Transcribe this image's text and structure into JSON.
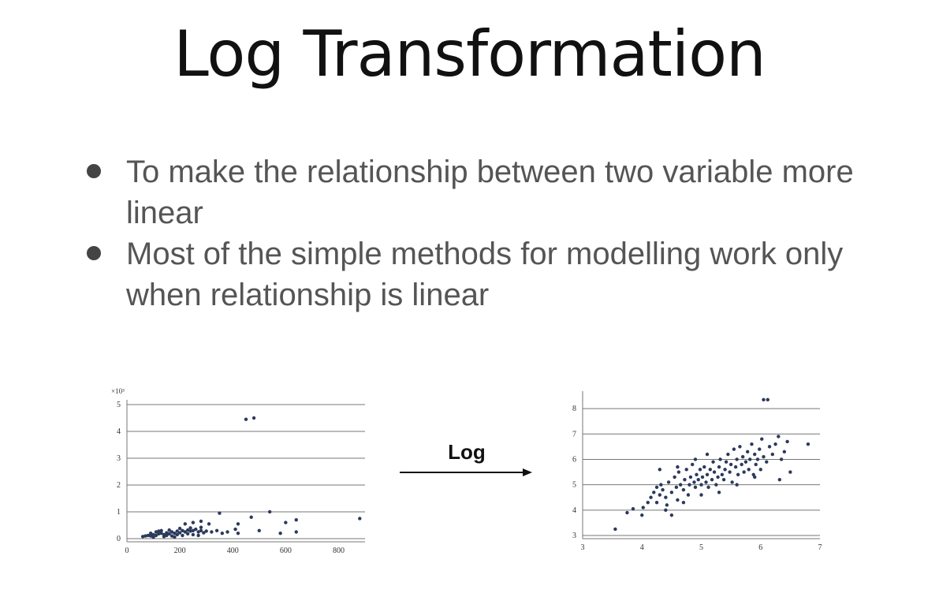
{
  "slide": {
    "title": "Log Transformation",
    "bullets": [
      "To make the relationship between two variable more linear",
      "Most of the simple methods for modelling work only when relationship is linear"
    ],
    "arrow_label": "Log"
  },
  "colors": {
    "point": "#2b3a5c",
    "grid": "#777777",
    "text": "#555555"
  },
  "chart_data": [
    {
      "type": "scatter",
      "title": "",
      "xlabel": "",
      "ylabel": "",
      "y_multiplier_label": "×10³",
      "xlim": [
        0,
        900
      ],
      "ylim": [
        0,
        5
      ],
      "x_ticks": [
        "0",
        "200",
        "400",
        "600",
        "800"
      ],
      "y_ticks": [
        "0",
        "1",
        "2",
        "3",
        "4",
        "5"
      ],
      "grid": "horizontal",
      "points": [
        [
          450,
          4.45
        ],
        [
          480,
          4.5
        ],
        [
          540,
          1.0
        ],
        [
          350,
          0.95
        ],
        [
          470,
          0.8
        ],
        [
          880,
          0.75
        ],
        [
          640,
          0.7
        ],
        [
          600,
          0.6
        ],
        [
          420,
          0.55
        ],
        [
          310,
          0.55
        ],
        [
          280,
          0.65
        ],
        [
          250,
          0.6
        ],
        [
          220,
          0.55
        ],
        [
          410,
          0.35
        ],
        [
          500,
          0.3
        ],
        [
          640,
          0.25
        ],
        [
          580,
          0.2
        ],
        [
          420,
          0.2
        ],
        [
          60,
          0.08
        ],
        [
          70,
          0.1
        ],
        [
          80,
          0.12
        ],
        [
          90,
          0.1
        ],
        [
          100,
          0.15
        ],
        [
          110,
          0.12
        ],
        [
          120,
          0.18
        ],
        [
          130,
          0.2
        ],
        [
          140,
          0.15
        ],
        [
          150,
          0.22
        ],
        [
          160,
          0.18
        ],
        [
          170,
          0.25
        ],
        [
          180,
          0.2
        ],
        [
          190,
          0.28
        ],
        [
          200,
          0.22
        ],
        [
          210,
          0.3
        ],
        [
          220,
          0.25
        ],
        [
          230,
          0.32
        ],
        [
          240,
          0.28
        ],
        [
          250,
          0.3
        ],
        [
          260,
          0.35
        ],
        [
          270,
          0.25
        ],
        [
          280,
          0.3
        ],
        [
          290,
          0.22
        ],
        [
          300,
          0.28
        ],
        [
          320,
          0.25
        ],
        [
          340,
          0.3
        ],
        [
          360,
          0.2
        ],
        [
          380,
          0.25
        ],
        [
          90,
          0.2
        ],
        [
          110,
          0.25
        ],
        [
          130,
          0.3
        ],
        [
          150,
          0.12
        ],
        [
          170,
          0.1
        ],
        [
          190,
          0.15
        ],
        [
          210,
          0.12
        ],
        [
          230,
          0.18
        ],
        [
          250,
          0.15
        ],
        [
          270,
          0.12
        ],
        [
          120,
          0.28
        ],
        [
          160,
          0.32
        ],
        [
          200,
          0.38
        ],
        [
          240,
          0.4
        ],
        [
          280,
          0.42
        ],
        [
          100,
          0.05
        ],
        [
          140,
          0.08
        ],
        [
          180,
          0.06
        ]
      ]
    },
    {
      "type": "scatter",
      "title": "",
      "xlabel": "",
      "ylabel": "",
      "xlim": [
        3,
        7
      ],
      "ylim": [
        3,
        8.5
      ],
      "x_ticks": [
        "3",
        "4",
        "5",
        "6",
        "7"
      ],
      "y_ticks": [
        "3",
        "4",
        "5",
        "6",
        "7",
        "8"
      ],
      "grid": "horizontal",
      "points": [
        [
          6.05,
          8.35
        ],
        [
          6.12,
          8.35
        ],
        [
          3.55,
          3.25
        ],
        [
          3.75,
          3.9
        ],
        [
          3.85,
          4.05
        ],
        [
          4.0,
          3.8
        ],
        [
          4.02,
          4.1
        ],
        [
          4.1,
          4.3
        ],
        [
          4.15,
          4.5
        ],
        [
          4.2,
          4.7
        ],
        [
          4.25,
          4.9
        ],
        [
          4.25,
          4.3
        ],
        [
          4.3,
          4.6
        ],
        [
          4.32,
          5.0
        ],
        [
          4.35,
          4.8
        ],
        [
          4.4,
          4.5
        ],
        [
          4.42,
          4.2
        ],
        [
          4.45,
          5.1
        ],
        [
          4.5,
          4.7
        ],
        [
          4.5,
          3.8
        ],
        [
          4.55,
          5.3
        ],
        [
          4.58,
          4.9
        ],
        [
          4.6,
          4.4
        ],
        [
          4.62,
          5.5
        ],
        [
          4.65,
          5.0
        ],
        [
          4.7,
          4.8
        ],
        [
          4.72,
          5.2
        ],
        [
          4.75,
          5.6
        ],
        [
          4.78,
          4.6
        ],
        [
          4.8,
          5.0
        ],
        [
          4.82,
          5.3
        ],
        [
          4.85,
          5.8
        ],
        [
          4.88,
          5.1
        ],
        [
          4.9,
          4.9
        ],
        [
          4.92,
          5.4
        ],
        [
          4.95,
          5.2
        ],
        [
          4.98,
          5.6
        ],
        [
          5.0,
          5.0
        ],
        [
          5.02,
          5.3
        ],
        [
          5.05,
          5.7
        ],
        [
          5.08,
          5.1
        ],
        [
          5.1,
          5.4
        ],
        [
          5.12,
          4.9
        ],
        [
          5.15,
          5.6
        ],
        [
          5.18,
          5.2
        ],
        [
          5.2,
          5.9
        ],
        [
          5.22,
          5.5
        ],
        [
          5.25,
          5.0
        ],
        [
          5.28,
          5.3
        ],
        [
          5.3,
          5.7
        ],
        [
          5.32,
          6.0
        ],
        [
          5.35,
          5.4
        ],
        [
          5.38,
          5.2
        ],
        [
          5.4,
          5.6
        ],
        [
          5.42,
          5.9
        ],
        [
          5.45,
          6.2
        ],
        [
          5.48,
          5.5
        ],
        [
          5.5,
          5.8
        ],
        [
          5.52,
          5.1
        ],
        [
          5.55,
          6.4
        ],
        [
          5.58,
          5.7
        ],
        [
          5.6,
          6.0
        ],
        [
          5.62,
          5.4
        ],
        [
          5.65,
          6.5
        ],
        [
          5.68,
          5.8
        ],
        [
          5.7,
          6.1
        ],
        [
          5.72,
          5.5
        ],
        [
          5.75,
          5.9
        ],
        [
          5.78,
          6.3
        ],
        [
          5.8,
          5.6
        ],
        [
          5.82,
          6.0
        ],
        [
          5.85,
          6.6
        ],
        [
          5.88,
          5.4
        ],
        [
          5.9,
          6.2
        ],
        [
          5.92,
          5.8
        ],
        [
          5.95,
          6.0
        ],
        [
          5.98,
          6.4
        ],
        [
          6.0,
          5.6
        ],
        [
          6.02,
          6.8
        ],
        [
          6.05,
          6.1
        ],
        [
          6.1,
          5.9
        ],
        [
          6.15,
          6.5
        ],
        [
          6.2,
          6.2
        ],
        [
          6.25,
          6.6
        ],
        [
          6.3,
          6.9
        ],
        [
          6.32,
          5.2
        ],
        [
          6.35,
          6.0
        ],
        [
          6.4,
          6.3
        ],
        [
          6.45,
          6.7
        ],
        [
          6.5,
          5.5
        ],
        [
          6.8,
          6.6
        ],
        [
          4.3,
          5.6
        ],
        [
          4.6,
          5.7
        ],
        [
          4.9,
          6.0
        ],
        [
          5.1,
          6.2
        ],
        [
          5.3,
          4.7
        ],
        [
          4.4,
          4.0
        ],
        [
          4.7,
          4.3
        ],
        [
          5.0,
          4.6
        ],
        [
          5.6,
          5.0
        ],
        [
          5.9,
          5.3
        ]
      ]
    }
  ]
}
